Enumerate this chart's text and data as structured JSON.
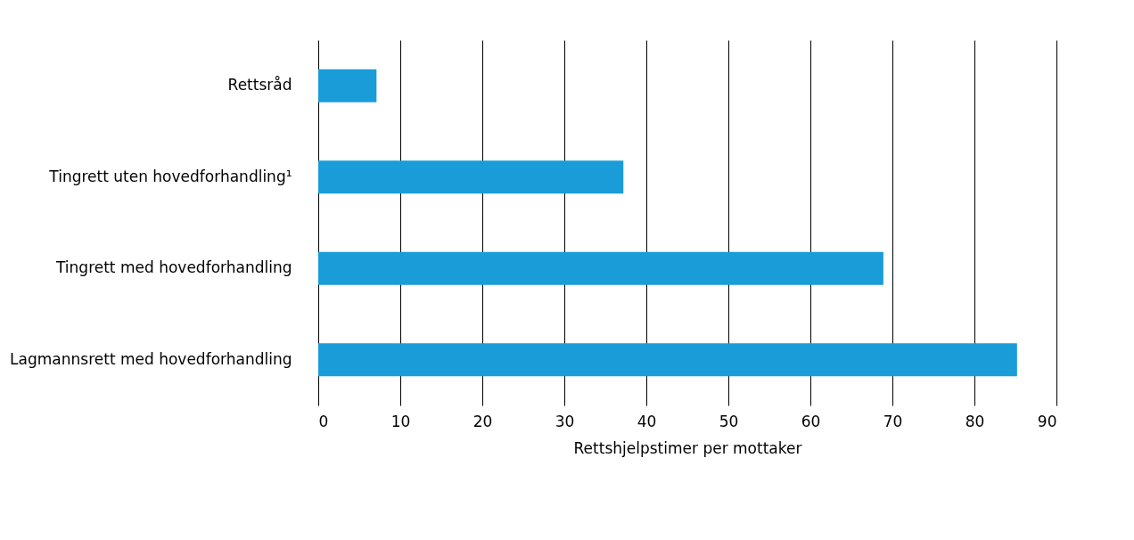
{
  "chart_data": {
    "type": "bar",
    "orientation": "horizontal",
    "categories": [
      "Rettsråd",
      "Tingrett uten hovedforhandling¹",
      "Tingrett med hovedforhandling",
      "Lagmannsrett med hovedforhandling"
    ],
    "values": [
      7.1,
      37.2,
      68.9,
      85.2
    ],
    "color": "#1a9cd9",
    "xlabel": "Rettshjelpstimer per mottaker",
    "xlim": [
      0,
      90
    ],
    "xticks": [
      0,
      10,
      20,
      30,
      40,
      50,
      60,
      70,
      80,
      90
    ],
    "grid": "x"
  }
}
